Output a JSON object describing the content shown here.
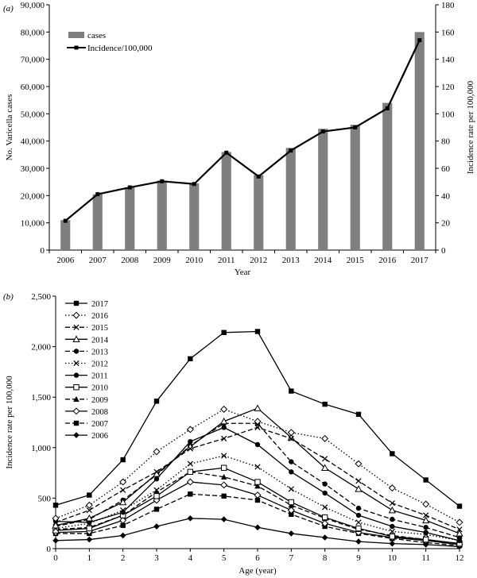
{
  "chart_data": [
    {
      "panel_label": "(a)",
      "type": "bar",
      "categories": [
        "2006",
        "2007",
        "2008",
        "2009",
        "2010",
        "2011",
        "2012",
        "2013",
        "2014",
        "2015",
        "2016",
        "2017"
      ],
      "series": [
        {
          "name": "cases",
          "type": "bar",
          "axis": "left",
          "values": [
            11000,
            20500,
            23000,
            25500,
            24500,
            36000,
            27500,
            37500,
            44500,
            46000,
            54000,
            80000
          ]
        },
        {
          "name": "Incidence/100,000",
          "type": "line",
          "axis": "right",
          "values": [
            21.5,
            41,
            46,
            50.5,
            48.5,
            71.5,
            54,
            73,
            87,
            90,
            104,
            154
          ]
        }
      ],
      "xlabel": "Year",
      "ylabel": "No. Varicella cases",
      "y2label": "Incidence rate per 100,000",
      "ylim": [
        0,
        90000
      ],
      "y2lim": [
        0,
        180
      ],
      "yticks": [
        "0",
        "10,000",
        "20,000",
        "30,000",
        "40,000",
        "50,000",
        "60,000",
        "70,000",
        "80,000",
        "90,000"
      ],
      "y2ticks": [
        "0",
        "20",
        "40",
        "60",
        "80",
        "100",
        "120",
        "140",
        "160",
        "180"
      ],
      "legend": "top-left",
      "colors": {
        "bar": "#7f7f7f",
        "line": "#000000"
      }
    },
    {
      "panel_label": "(b)",
      "type": "line",
      "x": [
        0,
        1,
        2,
        3,
        4,
        5,
        6,
        7,
        8,
        9,
        10,
        11,
        12
      ],
      "xticks": [
        "0",
        "1",
        "2",
        "3",
        "4",
        "5",
        "6",
        "7",
        "8",
        "9",
        "10",
        "11",
        "12"
      ],
      "xlabel": "Age (year)",
      "ylabel": "Incidence rate per 100,000",
      "ylim": [
        0,
        2500
      ],
      "yticks": [
        "0",
        "500",
        "1,000",
        "1,500",
        "2,000",
        "2,500"
      ],
      "legend": "top-left",
      "series": [
        {
          "name": "2017",
          "values": [
            430,
            530,
            880,
            1460,
            1880,
            2140,
            2150,
            1560,
            1430,
            1330,
            940,
            680,
            420
          ],
          "marker": "square-filled",
          "dash": "solid"
        },
        {
          "name": "2016",
          "values": [
            300,
            430,
            660,
            960,
            1180,
            1380,
            1260,
            1150,
            1090,
            840,
            600,
            440,
            260
          ],
          "marker": "diamond-open",
          "dash": "dot"
        },
        {
          "name": "2015",
          "values": [
            260,
            380,
            580,
            760,
            990,
            1090,
            1200,
            1090,
            890,
            670,
            450,
            330,
            190
          ],
          "marker": "cross",
          "dash": "dash"
        },
        {
          "name": "2014",
          "values": [
            230,
            300,
            460,
            740,
            1010,
            1260,
            1390,
            1100,
            800,
            590,
            380,
            280,
            150
          ],
          "marker": "triangle-open",
          "dash": "solid"
        },
        {
          "name": "2013",
          "values": [
            220,
            290,
            480,
            730,
            1020,
            1240,
            1240,
            860,
            640,
            400,
            290,
            210,
            110
          ],
          "marker": "circle-filled",
          "dash": "dash"
        },
        {
          "name": "2012",
          "values": [
            200,
            250,
            380,
            580,
            840,
            920,
            810,
            590,
            410,
            260,
            170,
            140,
            80
          ],
          "marker": "cross",
          "dash": "dot"
        },
        {
          "name": "2011",
          "values": [
            270,
            260,
            360,
            690,
            1060,
            1200,
            1030,
            760,
            550,
            330,
            220,
            160,
            80
          ],
          "marker": "circle-filled",
          "dash": "solid"
        },
        {
          "name": "2010",
          "values": [
            180,
            200,
            330,
            520,
            760,
            800,
            660,
            460,
            310,
            200,
            120,
            90,
            50
          ],
          "marker": "square-open",
          "dash": "solid"
        },
        {
          "name": "2009",
          "values": [
            190,
            210,
            330,
            560,
            760,
            710,
            620,
            430,
            300,
            190,
            130,
            90,
            50
          ],
          "marker": "triangle-filled",
          "dash": "dash"
        },
        {
          "name": "2008",
          "values": [
            160,
            170,
            280,
            480,
            660,
            630,
            530,
            380,
            250,
            160,
            110,
            80,
            40
          ],
          "marker": "diamond-open",
          "dash": "solid"
        },
        {
          "name": "2007",
          "values": [
            150,
            150,
            230,
            390,
            540,
            520,
            480,
            340,
            220,
            150,
            100,
            60,
            30
          ],
          "marker": "square-filled",
          "dash": "dash"
        },
        {
          "name": "2006",
          "values": [
            80,
            90,
            130,
            220,
            300,
            290,
            210,
            150,
            110,
            70,
            50,
            40,
            20
          ],
          "marker": "diamond-filled",
          "dash": "solid"
        }
      ]
    }
  ]
}
